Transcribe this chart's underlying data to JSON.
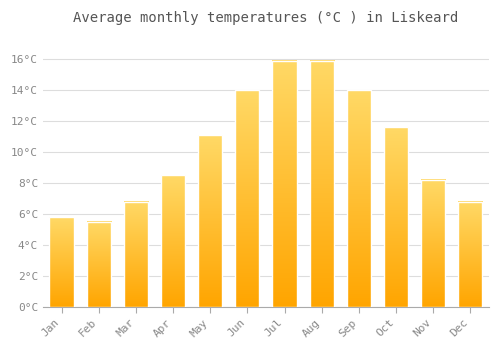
{
  "title": "Average monthly temperatures (°C ) in Liskeard",
  "months": [
    "Jan",
    "Feb",
    "Mar",
    "Apr",
    "May",
    "Jun",
    "Jul",
    "Aug",
    "Sep",
    "Oct",
    "Nov",
    "Dec"
  ],
  "values": [
    5.8,
    5.5,
    6.8,
    8.5,
    11.1,
    14.0,
    15.9,
    15.9,
    14.0,
    11.6,
    8.2,
    6.8
  ],
  "bar_color_top": "#FFD966",
  "bar_color_bottom": "#FFA500",
  "background_color": "#FFFFFF",
  "grid_color": "#DDDDDD",
  "ytick_labels": [
    "0°C",
    "2°C",
    "4°C",
    "6°C",
    "8°C",
    "10°C",
    "12°C",
    "14°C",
    "16°C"
  ],
  "ytick_values": [
    0,
    2,
    4,
    6,
    8,
    10,
    12,
    14,
    16
  ],
  "ylim": [
    0,
    17.5
  ],
  "title_fontsize": 10,
  "tick_fontsize": 8,
  "font_color": "#888888",
  "title_color": "#555555"
}
